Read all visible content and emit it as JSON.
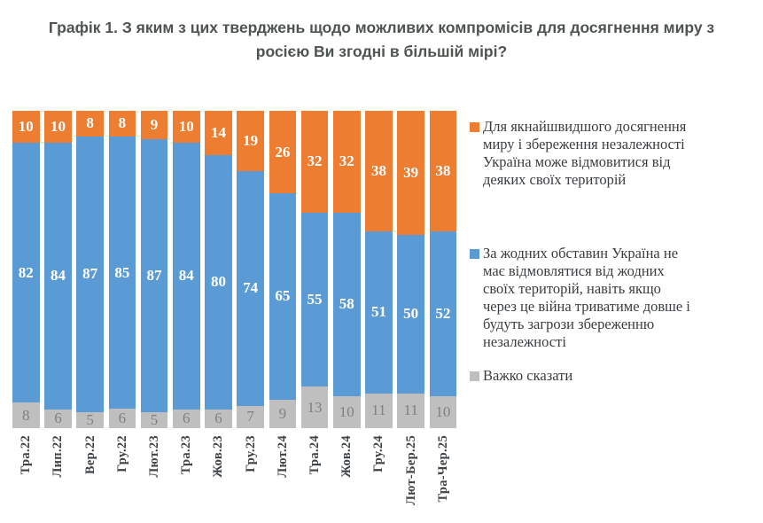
{
  "header": {
    "title_lines": [
      "Графік 1. З яким з цих тверджень щодо можливих компромісів для досягнення миру з",
      "росією Ви згодні в більшій мірі?"
    ]
  },
  "chart_data": {
    "type": "bar",
    "variant": "100-percent-stacked-column",
    "title": "Графік 1. З яким з цих тверджень щодо можливих компромісів для досягнення миру з росією Ви згодні в більшій мірі?",
    "categories": [
      "Тра.22",
      "Лип.22",
      "Вер.22",
      "Гру.22",
      "Лют.23",
      "Тра.23",
      "Жов.23",
      "Гру.23",
      "Лют.24",
      "Тра.24",
      "Жов.24",
      "Гру.24",
      "Лют-Бер.25",
      "Тра-Чер.25"
    ],
    "series": [
      {
        "name": "Для якнайшвидшого досягнення миру і збереження незалежності Україна може відмовитися від деяких своїх територій",
        "color": "#ED7D31",
        "values": [
          10,
          10,
          8,
          8,
          9,
          10,
          14,
          19,
          26,
          32,
          32,
          38,
          39,
          38
        ]
      },
      {
        "name": "За жодних обставин Україна не має відмовлятися від жодних своїх територій, навіть якщо через це війна триватиме довше і будуть загрози збереженню незалежності",
        "color": "#5B9BD5",
        "values": [
          82,
          84,
          87,
          85,
          87,
          84,
          80,
          74,
          65,
          55,
          58,
          51,
          50,
          52
        ]
      },
      {
        "name": "Важко сказати",
        "color": "#BFBFBF",
        "values": [
          8,
          6,
          5,
          6,
          5,
          6,
          6,
          7,
          9,
          13,
          10,
          11,
          11,
          10
        ]
      }
    ],
    "ylim": [
      0,
      100
    ],
    "grid": false,
    "legend_position": "right",
    "value_labels": "all-segments"
  },
  "legend": {
    "items": [
      {
        "swatch": "#ED7D31",
        "lines": [
          "Для якнайшвидшого досягнення",
          "миру і збереження незалежності",
          "Україна може відмовитися від",
          "деяких своїх територій"
        ]
      },
      {
        "swatch": "#5B9BD5",
        "lines": [
          "За жодних обставин Україна не",
          "має відмовлятися від жодних",
          "своїх територій, навіть якщо",
          "через це війна триватиме довше і",
          "будуть загрози збереженню",
          "незалежності"
        ]
      },
      {
        "swatch": "#BFBFBF",
        "lines": [
          "Важко сказати"
        ]
      }
    ]
  },
  "colors": {
    "orange": "#ED7D31",
    "blue": "#5B9BD5",
    "gray": "#BFBFBF",
    "background": "#FFFFFF",
    "title_text": "#4E544F",
    "axis_text": "#3F4448",
    "legend_text": "#3A3D40",
    "value_label_light": "#FFFFFF",
    "value_label_gray": "#808080"
  }
}
